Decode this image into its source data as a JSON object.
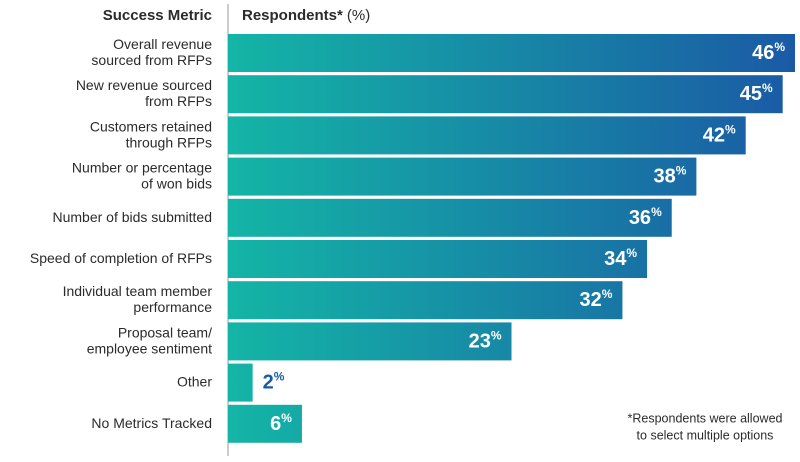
{
  "chart_data": {
    "type": "bar",
    "orientation": "horizontal",
    "category_header": "Success Metric",
    "value_header": "Respondents*",
    "value_unit": "(%)",
    "categories": [
      "Overall revenue\nsourced from RFPs",
      "New revenue sourced\nfrom RFPs",
      "Customers retained\nthrough RFPs",
      "Number or percentage\nof won bids",
      "Number of bids submitted",
      "Speed of completion of RFPs",
      "Individual team member\nperformance",
      "Proposal team/\nemployee sentiment",
      "Other",
      "No Metrics Tracked"
    ],
    "values": [
      46,
      45,
      42,
      38,
      36,
      34,
      32,
      23,
      2,
      6
    ],
    "value_labels": [
      "46%",
      "45%",
      "42%",
      "38%",
      "36%",
      "34%",
      "32%",
      "23%",
      "2%",
      "6%"
    ],
    "colors": [
      "#14b5a6",
      "#1a5aa5"
    ],
    "xlim": [
      0,
      46
    ],
    "footnote": "*Respondents were allowed\nto select multiple options"
  }
}
